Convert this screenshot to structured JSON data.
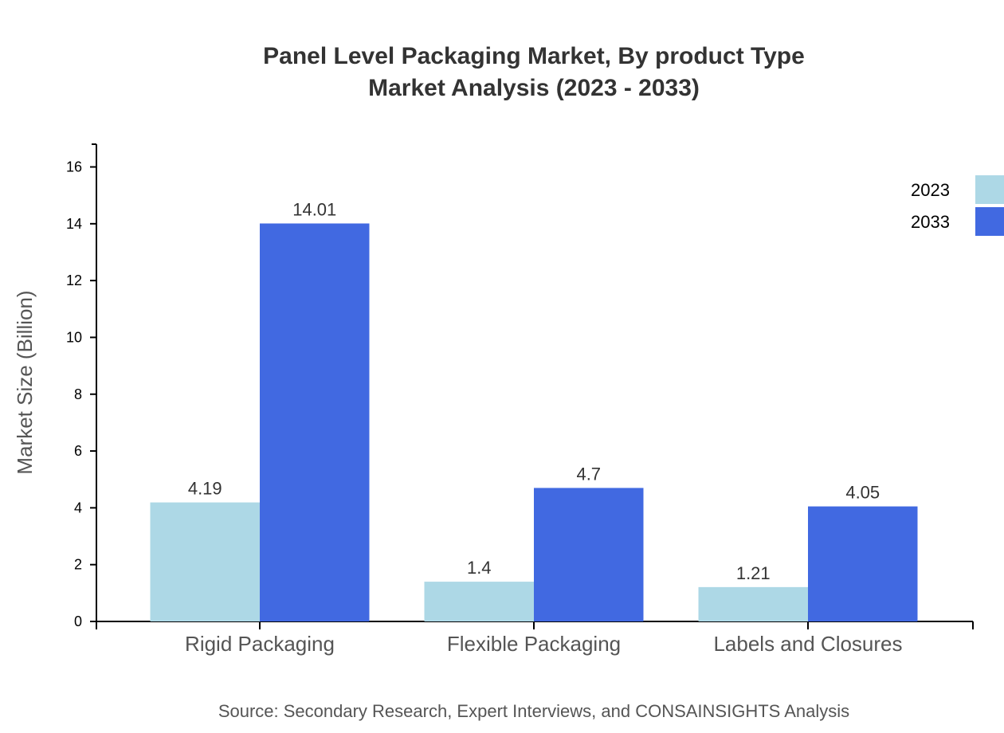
{
  "chart_data": {
    "type": "bar",
    "title": "Panel Level Packaging Market, By product Type",
    "subtitle": "Market Analysis (2023 - 2033)",
    "xlabel": "",
    "ylabel": "Market Size (Billion)",
    "ylim": [
      0,
      16.8
    ],
    "yticks": [
      0,
      2,
      4,
      6,
      8,
      10,
      12,
      14,
      16
    ],
    "categories": [
      "Rigid Packaging",
      "Flexible Packaging",
      "Labels and Closures"
    ],
    "series": [
      {
        "name": "2023",
        "values": [
          4.19,
          1.4,
          1.21
        ],
        "color": "#ADD8E6"
      },
      {
        "name": "2033",
        "values": [
          14.01,
          4.7,
          4.05
        ],
        "color": "#4169E1"
      }
    ],
    "legend": "top-right",
    "grid": false
  },
  "source": "Source: Secondary Research, Expert Interviews, and CONSAINSIGHTS Analysis"
}
